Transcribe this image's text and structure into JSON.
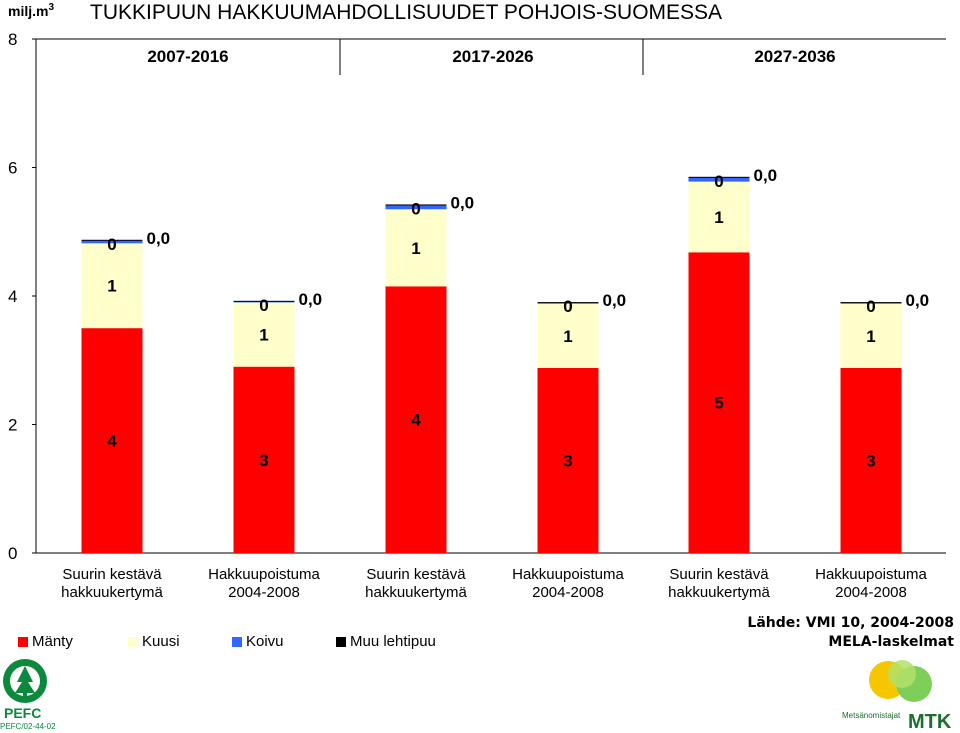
{
  "title": "TUKKIPUUN HAKKUUMAHDOLLISUUDET POHJOIS-SUOMESSA",
  "unit_label": "milj.m",
  "unit_sup": "3",
  "periods": [
    "2007-2016",
    "2017-2026",
    "2027-2036"
  ],
  "source_lines": [
    "Lähde: VMI 10, 2004-2008",
    "MELA-laskelmat"
  ],
  "logos": {
    "pefc_text": "PEFC",
    "pefc_code": "PEFC/02-44-02",
    "mtk_org": "Metsänomistajat",
    "mtk_text": "MTK"
  },
  "colors": {
    "Mänty": "#ff0000",
    "Kuusi": "#ffffcc",
    "Koivu": "#3366ff",
    "Muu lehtipuu": "#000000"
  },
  "chart_data": {
    "type": "bar",
    "stacked": true,
    "ylim": [
      0,
      8
    ],
    "yticks": [
      0,
      2,
      4,
      6,
      8
    ],
    "grid": false,
    "legend": "bottom-left",
    "categories": [
      [
        "Suurin kestävä",
        "hakkuukertymä"
      ],
      [
        "Hakkuupoistuma",
        "2004-2008"
      ],
      [
        "Suurin kestävä",
        "hakkuukertymä"
      ],
      [
        "Hakkuupoistuma",
        "2004-2008"
      ],
      [
        "Suurin kestävä",
        "hakkuukertymä"
      ],
      [
        "Hakkuupoistuma",
        "2004-2008"
      ]
    ],
    "series": [
      {
        "name": "Mänty",
        "values": [
          3.5,
          2.9,
          4.15,
          2.88,
          4.68,
          2.88
        ],
        "labels": [
          "4",
          "3",
          "4",
          "3",
          "5",
          "3"
        ]
      },
      {
        "name": "Kuusi",
        "values": [
          1.32,
          1.0,
          1.2,
          1.0,
          1.1,
          1.0
        ],
        "labels": [
          "1",
          "1",
          "1",
          "1",
          "1",
          "1"
        ]
      },
      {
        "name": "Koivu",
        "values": [
          0.05,
          0.02,
          0.07,
          0.02,
          0.07,
          0.02
        ],
        "labels": [
          "0",
          "0",
          "0",
          "0",
          "0",
          "0"
        ]
      },
      {
        "name": "Muu lehtipuu",
        "values": [
          0.005,
          0.005,
          0.005,
          0.005,
          0.005,
          0.005
        ],
        "labels": [
          "0,0",
          "0,0",
          "0,0",
          "0,0",
          "0,0",
          "0,0"
        ]
      }
    ]
  }
}
